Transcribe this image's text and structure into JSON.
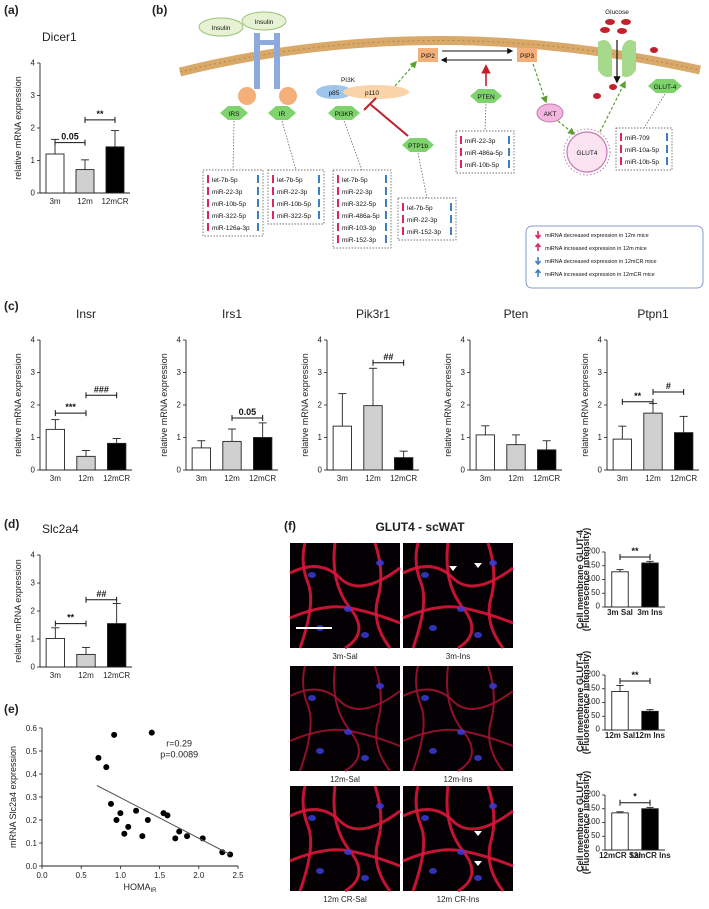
{
  "panel_labels": {
    "a": "(a)",
    "b": "(b)",
    "c": "(c)",
    "d": "(d)",
    "e": "(e)",
    "f": "(f)"
  },
  "pathway": {
    "nodes": {
      "insulin1": "Insulin",
      "insulin2": "Insulin",
      "glucose": "Glucose",
      "irs": "IRS",
      "ir": "IR",
      "pi3k": "PI3K",
      "p85": "p85",
      "p110": "p110",
      "pi3kr": "PI3KR",
      "pip2": "PIP2",
      "pip3": "PIP3",
      "pten": "PTEN",
      "ptp1b": "PTP1b",
      "akt": "AKT",
      "glut4_ves": "GLUT4",
      "glut4": "GLUT-4"
    },
    "boxes": {
      "irs": [
        {
          "name": "let-7b-5p",
          "down12": true,
          "upcr": true
        },
        {
          "name": "miR-22-3p",
          "down12": true,
          "upcr": true
        },
        {
          "name": "miR-10b-5p",
          "down12": true,
          "upcr": true
        },
        {
          "name": "miR-322-5p",
          "down12": true,
          "upcr": true
        },
        {
          "name": "miR-126a-3p",
          "down12": true,
          "upcr": true
        }
      ],
      "ir": [
        {
          "name": "let-7b-5p",
          "down12": true,
          "upcr": true
        },
        {
          "name": "miR-22-3p",
          "down12": true,
          "upcr": true
        },
        {
          "name": "miR-10b-5p",
          "down12": true,
          "upcr": true
        },
        {
          "name": "miR-322-5p",
          "down12": true,
          "upcr": true
        }
      ],
      "pi3kr": [
        {
          "name": "let-7b-5p",
          "down12": true,
          "upcr": true
        },
        {
          "name": "miR-22-3p",
          "down12": true,
          "upcr": true
        },
        {
          "name": "miR-322-5p",
          "down12": true,
          "upcr": true
        },
        {
          "name": "miR-486a-5p",
          "down12": true,
          "upcr": true
        },
        {
          "name": "miR-103-3p",
          "down12": true,
          "upcr": true
        },
        {
          "name": "miR-152-3p",
          "down12": true,
          "upcr": true
        }
      ],
      "ptp1b": [
        {
          "name": "let-7b-5p",
          "down12": true,
          "upcr": true
        },
        {
          "name": "miR-22-3p",
          "down12": true,
          "upcr": true
        },
        {
          "name": "miR-152-3p",
          "down12": true,
          "upcr": true
        }
      ],
      "pten": [
        {
          "name": "miR-22-3p",
          "down12": true,
          "upcr": true
        },
        {
          "name": "miR-486a-5p",
          "down12": true,
          "upcr": true
        },
        {
          "name": "miR-10b-5p",
          "down12": true,
          "upcr": true
        }
      ],
      "glut4": [
        {
          "name": "miR-709",
          "down12": true,
          "upcr": true
        },
        {
          "name": "miR-10a-5p",
          "down12": true,
          "upcr": true
        },
        {
          "name": "miR-10b-5p",
          "down12": true,
          "upcr": true
        }
      ]
    },
    "legend": [
      {
        "text": "miRNA decreased expression in 12m mice",
        "color": "#e0245e",
        "dir": "down"
      },
      {
        "text": "miRNA increased expression in 12m mice",
        "color": "#e0245e",
        "dir": "up"
      },
      {
        "text": "miRNA decreased expression in 12mCR mice",
        "color": "#3d7fc1",
        "dir": "down"
      },
      {
        "text": "miRNA increased expression in 12mCR mice",
        "color": "#3d7fc1",
        "dir": "up"
      }
    ],
    "colors": {
      "pink": "#e0245e",
      "blue": "#3d7fc1",
      "hex": "#7ed36d",
      "receptor": "#8ea9db",
      "ball": "#f5b07a",
      "membrane": "#d9a96a",
      "red": "#c0212b"
    }
  },
  "microscopy": {
    "title": "GLUT4 - scWAT",
    "labels": [
      "3m-Sal",
      "3m-Ins",
      "12m-Sal",
      "12m-Ins",
      "12m CR-Sal",
      "12m CR-Ins"
    ]
  },
  "chart_data": [
    {
      "id": "a",
      "type": "bar",
      "title": "Dicer1",
      "ylabel": "relative mRNA expression",
      "categories": [
        "3m",
        "12m",
        "12mCR"
      ],
      "values": [
        1.2,
        0.72,
        1.42
      ],
      "errors": [
        0.45,
        0.3,
        0.5
      ],
      "fills": [
        "#ffffff",
        "#d0d0d0",
        "#000000"
      ],
      "ylim": [
        0,
        4
      ],
      "yticks": [
        0,
        1,
        2,
        3,
        4
      ],
      "sig": [
        {
          "from": 0,
          "to": 1,
          "y": 1.55,
          "text": "0.05"
        },
        {
          "from": 1,
          "to": 2,
          "y": 2.25,
          "text": "**"
        }
      ]
    },
    {
      "id": "c1",
      "type": "bar",
      "title": "Insr",
      "ylabel": "relative mRNA expression",
      "categories": [
        "3m",
        "12m",
        "12mCR"
      ],
      "values": [
        1.25,
        0.42,
        0.82
      ],
      "errors": [
        0.3,
        0.18,
        0.15
      ],
      "fills": [
        "#ffffff",
        "#d0d0d0",
        "#000000"
      ],
      "ylim": [
        0,
        4
      ],
      "yticks": [
        0,
        1,
        2,
        3,
        4
      ],
      "sig": [
        {
          "from": 0,
          "to": 1,
          "y": 1.75,
          "text": "***"
        },
        {
          "from": 1,
          "to": 2,
          "y": 2.3,
          "text": "###"
        }
      ]
    },
    {
      "id": "c2",
      "type": "bar",
      "title": "Irs1",
      "ylabel": "relative mRNA expression",
      "categories": [
        "3m",
        "12m",
        "12mCR"
      ],
      "values": [
        0.68,
        0.88,
        1.0
      ],
      "errors": [
        0.22,
        0.38,
        0.45
      ],
      "fills": [
        "#ffffff",
        "#d0d0d0",
        "#000000"
      ],
      "ylim": [
        0,
        4
      ],
      "yticks": [
        0,
        1,
        2,
        3,
        4
      ],
      "sig": [
        {
          "from": 1,
          "to": 2,
          "y": 1.6,
          "text": "0.05"
        }
      ]
    },
    {
      "id": "c3",
      "type": "bar",
      "title": "Pik3r1",
      "ylabel": "relative mRNA expression",
      "categories": [
        "3m",
        "12m",
        "12mCR"
      ],
      "values": [
        1.35,
        1.98,
        0.38
      ],
      "errors": [
        1.0,
        1.15,
        0.2
      ],
      "fills": [
        "#ffffff",
        "#d0d0d0",
        "#000000"
      ],
      "ylim": [
        0,
        4
      ],
      "yticks": [
        0,
        1,
        2,
        3,
        4
      ],
      "sig": [
        {
          "from": 1,
          "to": 2,
          "y": 3.3,
          "text": "##"
        }
      ]
    },
    {
      "id": "c4",
      "type": "bar",
      "title": "Pten",
      "ylabel": "relative mRNA expression",
      "categories": [
        "3m",
        "12m",
        "12mCR"
      ],
      "values": [
        1.08,
        0.78,
        0.62
      ],
      "errors": [
        0.28,
        0.3,
        0.28
      ],
      "fills": [
        "#ffffff",
        "#d0d0d0",
        "#000000"
      ],
      "ylim": [
        0,
        4
      ],
      "yticks": [
        0,
        1,
        2,
        3,
        4
      ],
      "sig": []
    },
    {
      "id": "c5",
      "type": "bar",
      "title": "Ptpn1",
      "ylabel": "relative mRNA expression",
      "categories": [
        "3m",
        "12m",
        "12mCR"
      ],
      "values": [
        0.95,
        1.75,
        1.15
      ],
      "errors": [
        0.4,
        0.3,
        0.5
      ],
      "fills": [
        "#ffffff",
        "#d0d0d0",
        "#000000"
      ],
      "ylim": [
        0,
        4
      ],
      "yticks": [
        0,
        1,
        2,
        3,
        4
      ],
      "sig": [
        {
          "from": 0,
          "to": 1,
          "y": 2.1,
          "text": "**"
        },
        {
          "from": 1,
          "to": 2,
          "y": 2.4,
          "text": "#"
        }
      ]
    },
    {
      "id": "d",
      "type": "bar",
      "title": "Slc2a4",
      "ylabel": "relative mRNA expression",
      "categories": [
        "3m",
        "12m",
        "12mCR"
      ],
      "values": [
        1.02,
        0.45,
        1.55
      ],
      "errors": [
        0.38,
        0.25,
        0.72
      ],
      "fills": [
        "#ffffff",
        "#d0d0d0",
        "#000000"
      ],
      "ylim": [
        0,
        4
      ],
      "yticks": [
        0,
        1,
        2,
        3,
        4
      ],
      "sig": [
        {
          "from": 0,
          "to": 1,
          "y": 1.55,
          "text": "**"
        },
        {
          "from": 1,
          "to": 2,
          "y": 2.4,
          "text": "##"
        }
      ]
    },
    {
      "id": "e",
      "type": "scatter",
      "xlabel": "HOMA",
      "xlabel_sub": "IR",
      "ylabel": "mRNA Slc2a4 expression",
      "xlim": [
        0,
        2.5
      ],
      "ylim": [
        0,
        0.6
      ],
      "xticks": [
        0.0,
        0.5,
        1.0,
        1.5,
        2.0,
        2.5
      ],
      "yticks": [
        0.0,
        0.1,
        0.2,
        0.3,
        0.4,
        0.5,
        0.6
      ],
      "annotation": [
        "r=0.29",
        "p=0.0089"
      ],
      "points": [
        [
          0.72,
          0.47
        ],
        [
          0.82,
          0.43
        ],
        [
          0.88,
          0.27
        ],
        [
          0.92,
          0.57
        ],
        [
          0.95,
          0.2
        ],
        [
          1.0,
          0.23
        ],
        [
          1.05,
          0.14
        ],
        [
          1.1,
          0.17
        ],
        [
          1.2,
          0.24
        ],
        [
          1.28,
          0.13
        ],
        [
          1.35,
          0.2
        ],
        [
          1.4,
          0.58
        ],
        [
          1.55,
          0.23
        ],
        [
          1.6,
          0.22
        ],
        [
          1.7,
          0.12
        ],
        [
          1.75,
          0.15
        ],
        [
          1.85,
          0.13
        ],
        [
          2.05,
          0.12
        ],
        [
          2.3,
          0.06
        ],
        [
          2.4,
          0.05
        ]
      ],
      "fit": [
        [
          0.7,
          0.35
        ],
        [
          2.4,
          0.05
        ]
      ]
    },
    {
      "id": "f1",
      "type": "bar",
      "ylabel": "Cell membrane GLUT-4\n(Fluorescence intensity)",
      "categories": [
        "3m Sal",
        "3m Ins"
      ],
      "values": [
        128,
        160
      ],
      "errors": [
        8,
        6
      ],
      "fills": [
        "#ffffff",
        "#000000"
      ],
      "ylim": [
        0,
        200
      ],
      "yticks": [
        0,
        50,
        100,
        150,
        200
      ],
      "sig": [
        {
          "from": 0,
          "to": 1,
          "y": 182,
          "text": "**"
        }
      ]
    },
    {
      "id": "f2",
      "type": "bar",
      "ylabel": "Cell membrane GLUT-4\n(Fluorescence intensity)",
      "categories": [
        "12m Sal",
        "12m Ins"
      ],
      "values": [
        140,
        68
      ],
      "errors": [
        22,
        6
      ],
      "fills": [
        "#ffffff",
        "#000000"
      ],
      "ylim": [
        0,
        200
      ],
      "yticks": [
        0,
        50,
        100,
        150,
        200
      ],
      "sig": [
        {
          "from": 0,
          "to": 1,
          "y": 178,
          "text": "**"
        }
      ]
    },
    {
      "id": "f3",
      "type": "bar",
      "ylabel": "Cell membrane GLUT-4\n(Fluorescence intensity)",
      "categories": [
        "12mCR Sal",
        "12mCR Ins"
      ],
      "values": [
        135,
        150
      ],
      "errors": [
        4,
        5
      ],
      "fills": [
        "#ffffff",
        "#000000"
      ],
      "ylim": [
        0,
        200
      ],
      "yticks": [
        0,
        50,
        100,
        150,
        200
      ],
      "sig": [
        {
          "from": 0,
          "to": 1,
          "y": 172,
          "text": "*"
        }
      ]
    }
  ]
}
